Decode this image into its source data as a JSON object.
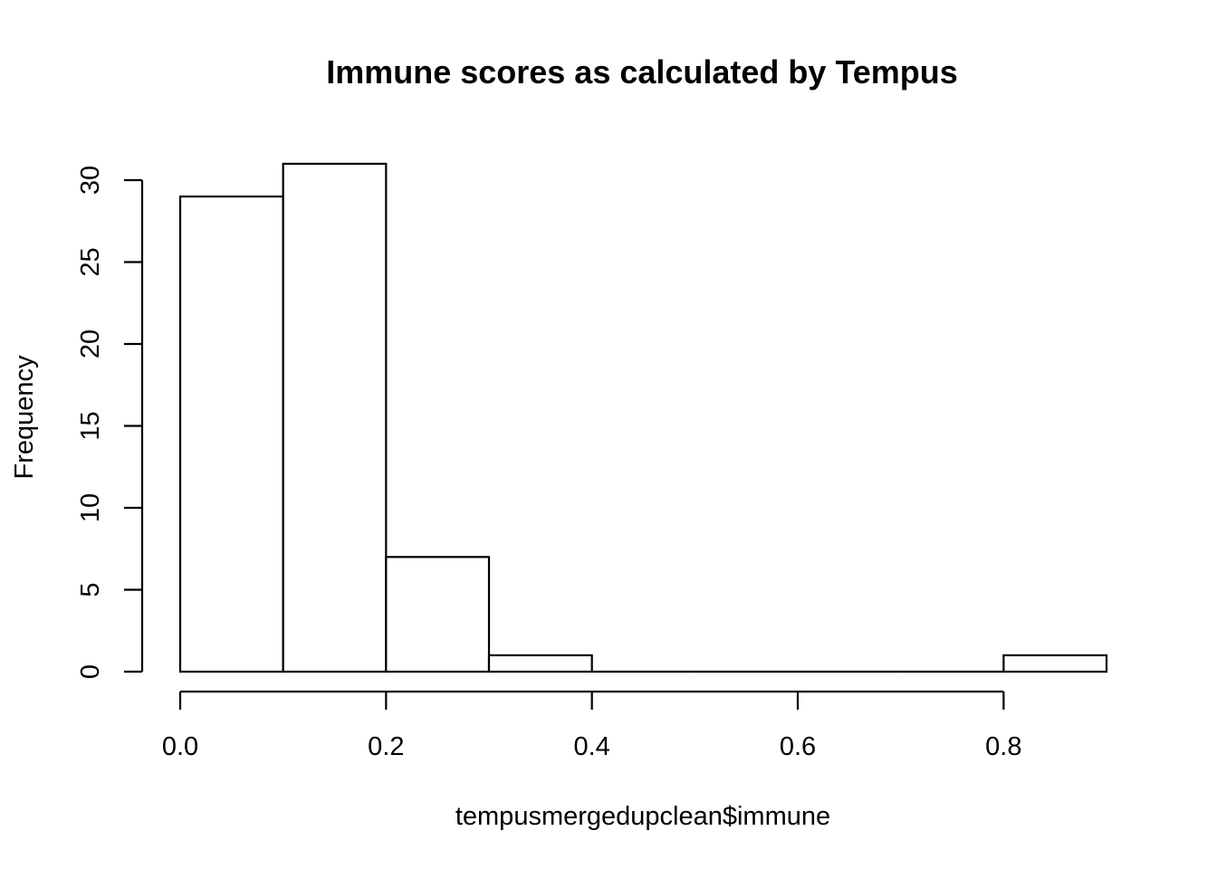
{
  "chart_data": {
    "type": "bar",
    "title": "Immune scores as calculated by Tempus",
    "xlabel": "tempusmergedupclean$immune",
    "ylabel": "Frequency",
    "bins": [
      {
        "from": 0.0,
        "to": 0.1,
        "count": 29
      },
      {
        "from": 0.1,
        "to": 0.2,
        "count": 31
      },
      {
        "from": 0.2,
        "to": 0.3,
        "count": 7
      },
      {
        "from": 0.3,
        "to": 0.4,
        "count": 1
      },
      {
        "from": 0.4,
        "to": 0.5,
        "count": 0
      },
      {
        "from": 0.5,
        "to": 0.6,
        "count": 0
      },
      {
        "from": 0.6,
        "to": 0.7,
        "count": 0
      },
      {
        "from": 0.7,
        "to": 0.8,
        "count": 0
      },
      {
        "from": 0.8,
        "to": 0.9,
        "count": 1
      }
    ],
    "xlim": [
      0.0,
      0.9
    ],
    "ylim": [
      0,
      30
    ],
    "x_ticks": [
      "0.0",
      "0.2",
      "0.4",
      "0.6",
      "0.8"
    ],
    "y_ticks": [
      "0",
      "5",
      "10",
      "15",
      "20",
      "25",
      "30"
    ],
    "grid": false,
    "legend": "none"
  }
}
